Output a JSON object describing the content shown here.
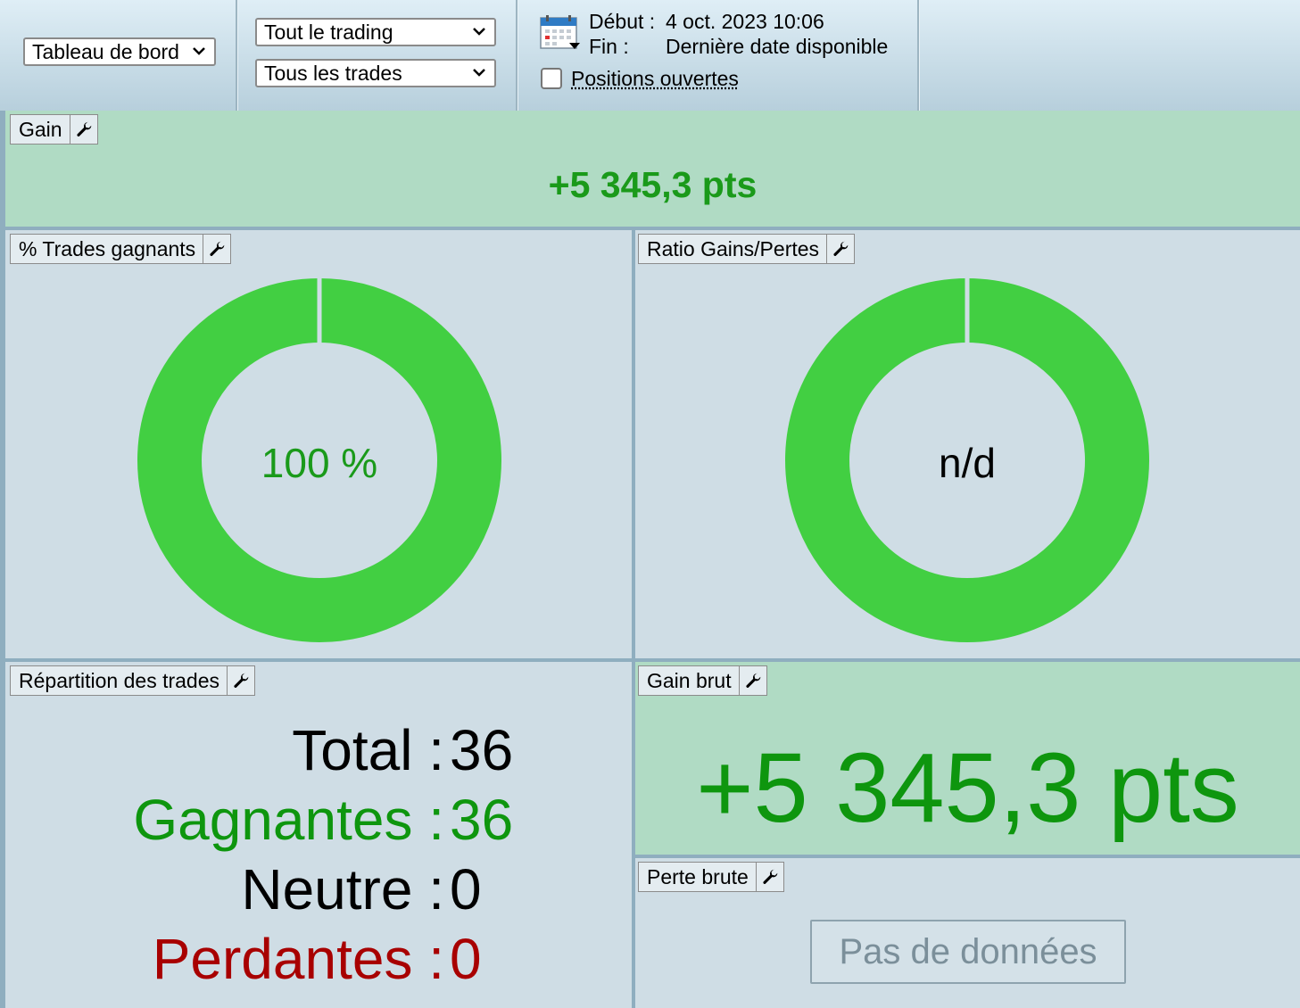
{
  "toolbar": {
    "view_select": "Tableau de bord",
    "scope_select": "Tout le trading",
    "trades_select": "Tous les trades",
    "start_label": "Début :",
    "start_value": "4 oct. 2023 10:06",
    "end_label": "Fin :",
    "end_value": "Dernière date disponible",
    "open_positions_label": "Positions ouvertes",
    "open_positions_checked": false
  },
  "panels": {
    "gain": {
      "title": "Gain",
      "value": "+5 345,3 pts"
    },
    "win_rate": {
      "title": "% Trades gagnants",
      "label": "100 %",
      "winning_fraction": 1.0
    },
    "ratio": {
      "title": "Ratio Gains/Pertes",
      "label": "n/d",
      "winning_fraction": 1.0
    },
    "distribution": {
      "title": "Répartition des trades",
      "rows": [
        {
          "label": "Total :",
          "value": "36",
          "color": "#000000"
        },
        {
          "label": "Gagnantes :",
          "value": "36",
          "color": "#0e960e"
        },
        {
          "label": "Neutre :",
          "value": "0",
          "color": "#000000"
        },
        {
          "label": "Perdantes :",
          "value": "0",
          "color": "#a80000"
        }
      ]
    },
    "gross_gain": {
      "title": "Gain brut",
      "value": "+5 345,3 pts"
    },
    "gross_loss": {
      "title": "Perte brute",
      "no_data": "Pas de données"
    }
  },
  "colors": {
    "win": "#42cf42",
    "accent_text": "#1a9a1a"
  }
}
